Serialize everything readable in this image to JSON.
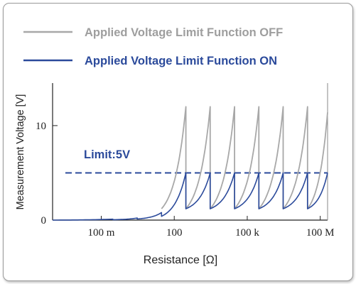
{
  "chart_data": {
    "type": "line",
    "title": "",
    "xlabel": "Resistance [Ω]",
    "ylabel": "Measurement Voltage [V]",
    "x_scale": "log",
    "x_unit": "Ω",
    "xlim": [
      0.001,
      200000000
    ],
    "ylim": [
      0,
      14.5
    ],
    "x_ticks": [
      {
        "value": 0.1,
        "label": "100 m"
      },
      {
        "value": 100,
        "label": "100"
      },
      {
        "value": 100000,
        "label": "100 k"
      },
      {
        "value": 100000000,
        "label": "100 M"
      }
    ],
    "y_ticks": [
      {
        "value": 0,
        "label": "0"
      },
      {
        "value": 10,
        "label": "10"
      }
    ],
    "limit": {
      "label": "Limit:5V",
      "value": 5,
      "color": "#2b4a9b"
    },
    "legend_position": "top",
    "series": [
      {
        "name": "Applied Voltage Limit Function OFF",
        "color": "#a8a8a8",
        "ranges": [
          {
            "from": 30,
            "to": 300,
            "v_start": 1.2,
            "v_end": 12
          },
          {
            "from": 300,
            "to": 3000,
            "v_start": 1.2,
            "v_end": 12
          },
          {
            "from": 3000,
            "to": 30000,
            "v_start": 1.2,
            "v_end": 12
          },
          {
            "from": 30000,
            "to": 300000,
            "v_start": 1.2,
            "v_end": 12
          },
          {
            "from": 300000,
            "to": 3000000,
            "v_start": 1.2,
            "v_end": 12
          },
          {
            "from": 3000000,
            "to": 30000000,
            "v_start": 1.2,
            "v_end": 12
          },
          {
            "from": 30000000,
            "to": 200000000,
            "v_start": 1.2,
            "v_end": 11.4
          }
        ]
      },
      {
        "name": "Applied Voltage Limit Function ON",
        "color": "#2b4a9b",
        "ranges": [
          {
            "from": 0.001,
            "to": 0.3,
            "v_start": 0,
            "v_end": 0.1
          },
          {
            "from": 0.3,
            "to": 3,
            "v_start": 0.04,
            "v_end": 0.22
          },
          {
            "from": 3,
            "to": 30,
            "v_start": 0.12,
            "v_end": 0.8
          },
          {
            "from": 30,
            "to": 300,
            "v_start": 0.4,
            "v_end": 5
          },
          {
            "from": 300,
            "to": 3000,
            "v_start": 1.2,
            "v_end": 5
          },
          {
            "from": 3000,
            "to": 30000,
            "v_start": 1.2,
            "v_end": 5
          },
          {
            "from": 30000,
            "to": 300000,
            "v_start": 1.2,
            "v_end": 5
          },
          {
            "from": 300000,
            "to": 3000000,
            "v_start": 1.2,
            "v_end": 5
          },
          {
            "from": 3000000,
            "to": 30000000,
            "v_start": 1.2,
            "v_end": 5
          },
          {
            "from": 30000000,
            "to": 200000000,
            "v_start": 1.2,
            "v_end": 5
          }
        ]
      }
    ]
  }
}
